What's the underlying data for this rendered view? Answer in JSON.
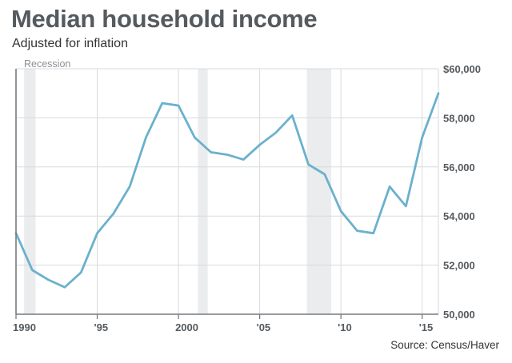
{
  "chart_data": {
    "type": "line",
    "title": "Median household income",
    "subtitle": "Adjusted for inflation",
    "source": "Source: Census/Haver",
    "recession_label": "Recession",
    "xlim": [
      1990,
      2016
    ],
    "ylim": [
      50000,
      60000
    ],
    "x_ticks": [
      {
        "value": 1990,
        "label": "1990"
      },
      {
        "value": 1995,
        "label": "'95"
      },
      {
        "value": 2000,
        "label": "2000"
      },
      {
        "value": 2005,
        "label": "'05"
      },
      {
        "value": 2010,
        "label": "'10"
      },
      {
        "value": 2015,
        "label": "'15"
      }
    ],
    "y_ticks": [
      {
        "value": 50000,
        "label": "50,000"
      },
      {
        "value": 52000,
        "label": "52,000"
      },
      {
        "value": 54000,
        "label": "54,000"
      },
      {
        "value": 56000,
        "label": "56,000"
      },
      {
        "value": 58000,
        "label": "58,000"
      },
      {
        "value": 60000,
        "label": "$60,000"
      }
    ],
    "recessions": [
      [
        1990.5,
        1991.2
      ],
      [
        2001.2,
        2001.8
      ],
      [
        2007.9,
        2009.4
      ]
    ],
    "series": [
      {
        "name": "Median household income",
        "color": "#6ab1cd",
        "x": [
          1990,
          1991,
          1992,
          1993,
          1994,
          1995,
          1996,
          1997,
          1998,
          1999,
          2000,
          2001,
          2002,
          2003,
          2004,
          2005,
          2006,
          2007,
          2008,
          2009,
          2010,
          2011,
          2012,
          2013,
          2014,
          2015,
          2016
        ],
        "values": [
          53300,
          51800,
          51400,
          51100,
          51700,
          53300,
          54100,
          55200,
          57200,
          58600,
          58500,
          57200,
          56600,
          56500,
          56300,
          56900,
          57400,
          58100,
          56100,
          55700,
          54200,
          53400,
          53300,
          55200,
          54400,
          57200,
          59000
        ]
      }
    ]
  },
  "colors": {
    "title": "#555a5e",
    "line": "#6ab1cd",
    "grid": "#d8dadc",
    "recession": "#ebeced"
  }
}
